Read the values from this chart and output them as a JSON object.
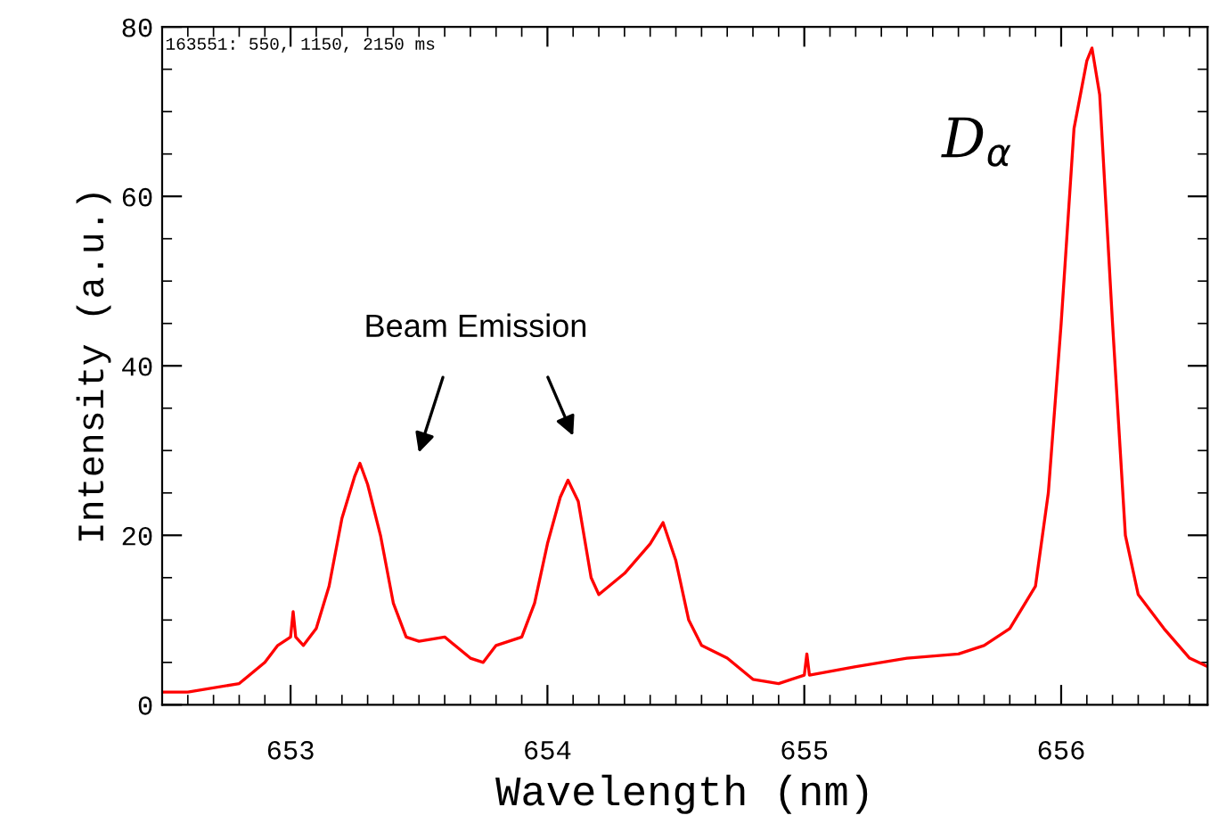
{
  "chart_data": {
    "type": "line",
    "xlabel": "Wavelength (nm)",
    "ylabel": "Intensity (a.u.)",
    "xlim": [
      652.5,
      656.57
    ],
    "ylim": [
      0,
      80
    ],
    "xticks": [
      653,
      654,
      655,
      656
    ],
    "yticks": [
      0,
      20,
      40,
      60,
      80
    ],
    "tick_labels": "xy",
    "grid": false,
    "legend": false,
    "marker": "none",
    "line_style": "solid",
    "annotations": [
      "163551: 550, 1150, 2150 ms",
      "Beam Emission",
      "D$_{α}$"
    ],
    "series": [
      {
        "color": "#ff0000",
        "x": [
          652.5,
          652.6,
          652.8,
          652.9,
          652.95,
          653.0,
          653.01,
          653.02,
          653.05,
          653.1,
          653.15,
          653.2,
          653.25,
          653.27,
          653.3,
          653.35,
          653.4,
          653.45,
          653.5,
          653.6,
          653.7,
          653.75,
          653.8,
          653.9,
          653.95,
          654.0,
          654.05,
          654.08,
          654.12,
          654.17,
          654.2,
          654.3,
          654.4,
          654.45,
          654.5,
          654.55,
          654.6,
          654.7,
          654.8,
          654.9,
          655.0,
          655.01,
          655.02,
          655.2,
          655.4,
          655.6,
          655.7,
          655.8,
          655.9,
          655.95,
          656.0,
          656.05,
          656.1,
          656.12,
          656.15,
          656.2,
          656.25,
          656.3,
          656.4,
          656.5,
          656.57
        ],
        "values": [
          1.5,
          1.5,
          2.5,
          5,
          7,
          8,
          11,
          8,
          7,
          9,
          14,
          22,
          27,
          28.5,
          26,
          20,
          12,
          8,
          7.5,
          8,
          5.5,
          5,
          7,
          8,
          12,
          19,
          24.5,
          26.5,
          24,
          15,
          13,
          15.5,
          19,
          21.5,
          17,
          10,
          7,
          5.5,
          3,
          2.5,
          3.5,
          6,
          3.5,
          4.5,
          5.5,
          6,
          7,
          9,
          14,
          25,
          45,
          68,
          76,
          77.5,
          72,
          45,
          20,
          13,
          9,
          5.5,
          4.5
        ]
      }
    ]
  }
}
